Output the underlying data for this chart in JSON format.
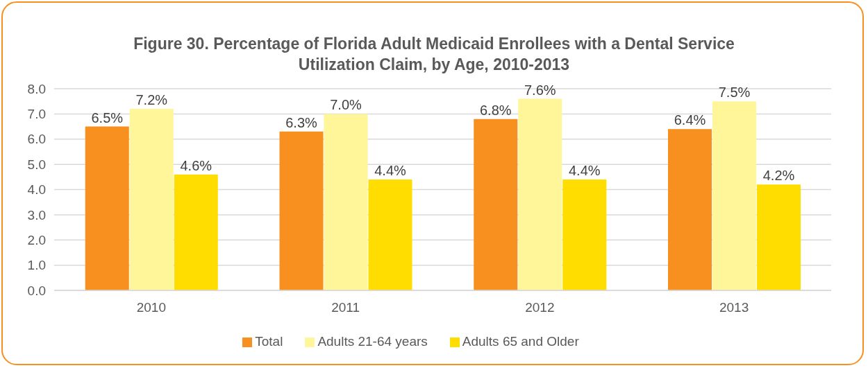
{
  "chart_data": {
    "type": "bar",
    "title": "Figure 30. Percentage of Florida Adult Medicaid Enrollees with a Dental Service Utilization Claim, by Age, 2010-2013",
    "categories": [
      "2010",
      "2011",
      "2012",
      "2013"
    ],
    "series": [
      {
        "name": "Total",
        "color": "#f7901e",
        "values": [
          6.5,
          6.3,
          6.8,
          6.4
        ],
        "value_labels": [
          "6.5%",
          "6.3%",
          "6.8%",
          "6.4%"
        ]
      },
      {
        "name": "Adults 21-64 years",
        "color": "#fff599",
        "values": [
          7.2,
          7.0,
          7.6,
          7.5
        ],
        "value_labels": [
          "7.2%",
          "7.0%",
          "7.6%",
          "7.5%"
        ]
      },
      {
        "name": "Adults 65 and Older",
        "color": "#ffdd00",
        "values": [
          4.6,
          4.4,
          4.4,
          4.2
        ],
        "value_labels": [
          "4.6%",
          "4.4%",
          "4.4%",
          "4.2%"
        ]
      }
    ],
    "ylim": [
      0,
      8
    ],
    "yticks": [
      {
        "value": 0,
        "label": "0.0"
      },
      {
        "value": 1,
        "label": "1.0"
      },
      {
        "value": 2,
        "label": "2.0"
      },
      {
        "value": 3,
        "label": "3.0"
      },
      {
        "value": 4,
        "label": "4.0"
      },
      {
        "value": 5,
        "label": "5.0"
      },
      {
        "value": 6,
        "label": "6.0"
      },
      {
        "value": 7,
        "label": "7.0"
      },
      {
        "value": 8,
        "label": "8.0"
      }
    ],
    "grid": "y",
    "legend": "bottom"
  }
}
